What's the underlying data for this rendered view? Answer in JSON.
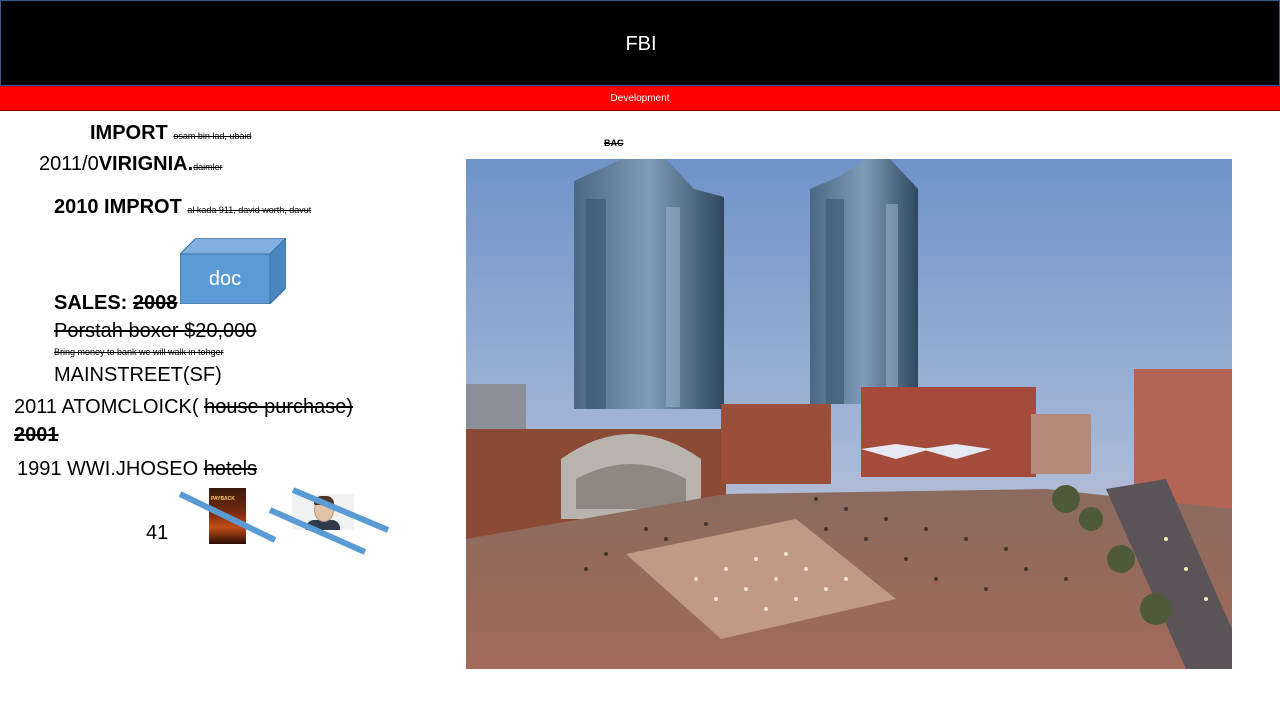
{
  "header": {
    "title": "FBI"
  },
  "subheader": {
    "label": "Development"
  },
  "slide_text": {
    "import_label": "IMPORT",
    "import_note": "osam bin lad, ubaid",
    "line_2011_prefix": "2011/0",
    "virginia_label": "VIRIGNIA.",
    "virginia_note": "daimler",
    "line_2010": "2010 IMPROT",
    "line_2010_note": "al kada 911, david worth, davut",
    "sales_label": "SALES:",
    "sales_year": "2008",
    "porstah_line": "Porstah boxer $20,000",
    "bring_money_line": "Bring money to bank we will walk in tohger",
    "mainstreet_line": "MAINSTREET(SF)",
    "atomclock_prefix": "2011 ATOMCLOICK(",
    "atomclock_struck": "house purchase)",
    "year_2001": "2001",
    "line_1991_prefix": "1991 WWI.JHOSEO",
    "line_1991_struck": "hotels",
    "number_41": "41",
    "bac_label": "BAC"
  },
  "doc_box": {
    "label": "doc",
    "color": "#5b9bd5"
  },
  "thumbnails": [
    {
      "name": "movie-poster",
      "caption": "PAYBACK"
    },
    {
      "name": "person-portrait"
    }
  ],
  "photo": {
    "description_icon": "city-plaza-photo"
  },
  "colors": {
    "title_bar": "#000000",
    "sub_bar": "#ff0000",
    "slash": "#5b9bd5"
  }
}
